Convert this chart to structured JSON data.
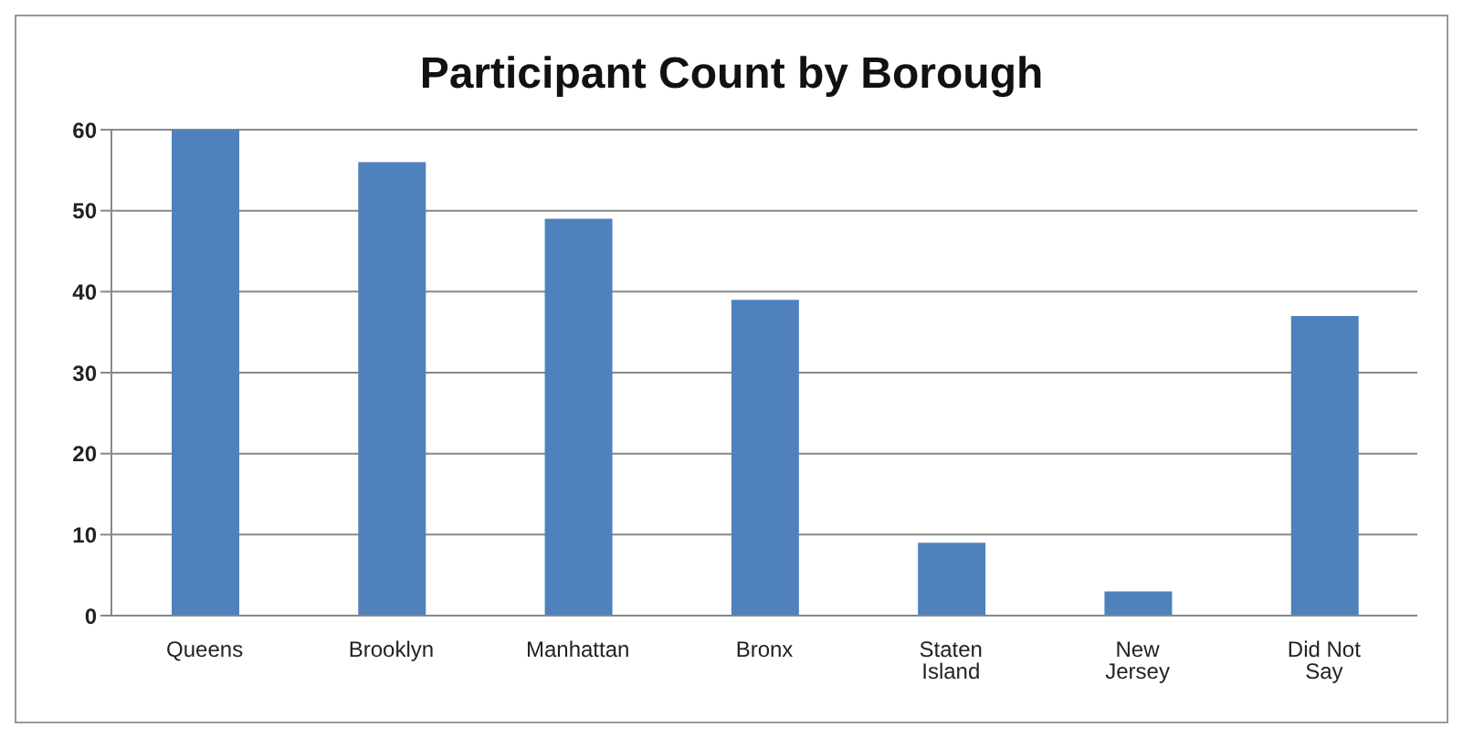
{
  "chart_data": {
    "type": "bar",
    "title": "Participant Count by Borough",
    "categories": [
      "Queens",
      "Brooklyn",
      "Manhattan",
      "Bronx",
      "Staten Island",
      "New Jersey",
      "Did Not Say"
    ],
    "values": [
      60,
      56,
      49,
      39,
      9,
      3,
      37
    ],
    "color": "#4f81bd",
    "ylim": [
      0,
      60
    ],
    "yticks": [
      0,
      10,
      20,
      30,
      40,
      50,
      60
    ],
    "grid": "y",
    "legend": false
  }
}
